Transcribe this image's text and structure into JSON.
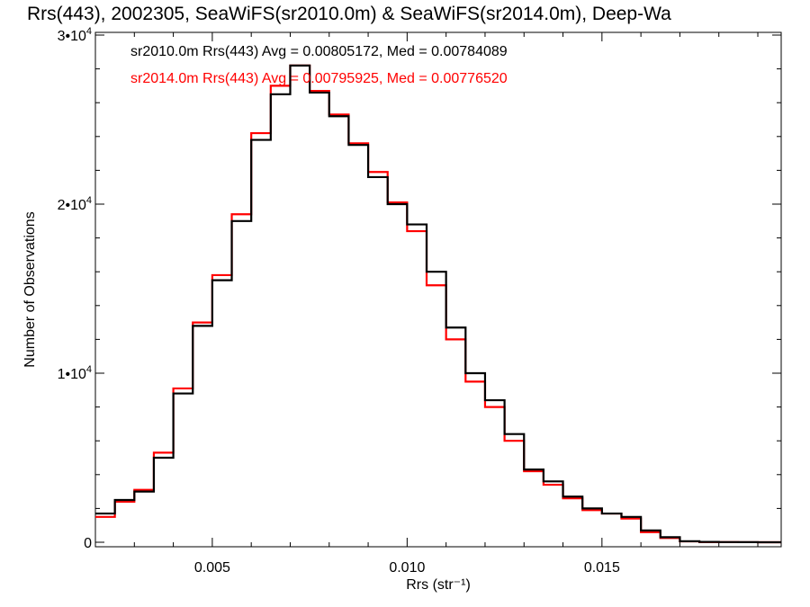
{
  "chart_data": {
    "type": "line",
    "title": "Rrs(443), 2002305, SeaWiFS(sr2010.0m) & SeaWiFS(sr2014.0m), Deep-Wa",
    "xlabel": "Rrs (str⁻¹)",
    "ylabel": "Number of Observations",
    "xlim": [
      0.002,
      0.0196
    ],
    "ylim": [
      0,
      30000
    ],
    "grid": false,
    "x_ticks": [
      {
        "value": 0.005,
        "label": "0.005"
      },
      {
        "value": 0.01,
        "label": "0.010"
      },
      {
        "value": 0.015,
        "label": "0.015"
      }
    ],
    "y_ticks": [
      {
        "value": 0,
        "label": "0",
        "sup": ""
      },
      {
        "value": 10000,
        "label": "1•10",
        "sup": "4"
      },
      {
        "value": 20000,
        "label": "2•10",
        "sup": "4"
      },
      {
        "value": 30000,
        "label": "3•10",
        "sup": "4"
      }
    ],
    "series": [
      {
        "name": "sr2010.0m",
        "color": "#000000",
        "legend_text": "sr2010.0m Rrs(443) Avg = 0.00805172, Med = 0.00784089",
        "x": [
          0.002,
          0.0025,
          0.003,
          0.0035,
          0.004,
          0.0045,
          0.005,
          0.0055,
          0.006,
          0.0065,
          0.007,
          0.0075,
          0.008,
          0.0085,
          0.009,
          0.0095,
          0.01,
          0.0105,
          0.011,
          0.0115,
          0.012,
          0.0125,
          0.013,
          0.0135,
          0.014,
          0.0145,
          0.015,
          0.0155,
          0.016,
          0.0165,
          0.017,
          0.0175,
          0.018,
          0.0185,
          0.019,
          0.0196
        ],
        "y": [
          1700,
          2500,
          3000,
          5000,
          8800,
          12800,
          15500,
          19000,
          23800,
          26500,
          28200,
          26600,
          25200,
          23500,
          21600,
          20000,
          18800,
          16000,
          12700,
          10000,
          8400,
          6400,
          4300,
          3600,
          2700,
          2000,
          1700,
          1500,
          700,
          300,
          60,
          20,
          10,
          5,
          0,
          0
        ]
      },
      {
        "name": "sr2014.0m",
        "color": "#ff0000",
        "legend_text": "sr2014.0m Rrs(443) Avg = 0.00795925, Med = 0.00776520",
        "x": [
          0.002,
          0.0025,
          0.003,
          0.0035,
          0.004,
          0.0045,
          0.005,
          0.0055,
          0.006,
          0.0065,
          0.007,
          0.0075,
          0.008,
          0.0085,
          0.009,
          0.0095,
          0.01,
          0.0105,
          0.011,
          0.0115,
          0.012,
          0.0125,
          0.013,
          0.0135,
          0.014,
          0.0145,
          0.015,
          0.0155,
          0.016,
          0.0165,
          0.017,
          0.0175,
          0.018,
          0.0185,
          0.019,
          0.0196
        ],
        "y": [
          1500,
          2400,
          3100,
          5300,
          9100,
          13000,
          15800,
          19400,
          24200,
          27000,
          28200,
          26700,
          25300,
          23600,
          21900,
          20100,
          18400,
          15200,
          12000,
          9500,
          8000,
          6000,
          4200,
          3400,
          2600,
          1900,
          1700,
          1400,
          600,
          250,
          50,
          15,
          8,
          4,
          0,
          0
        ]
      }
    ]
  }
}
